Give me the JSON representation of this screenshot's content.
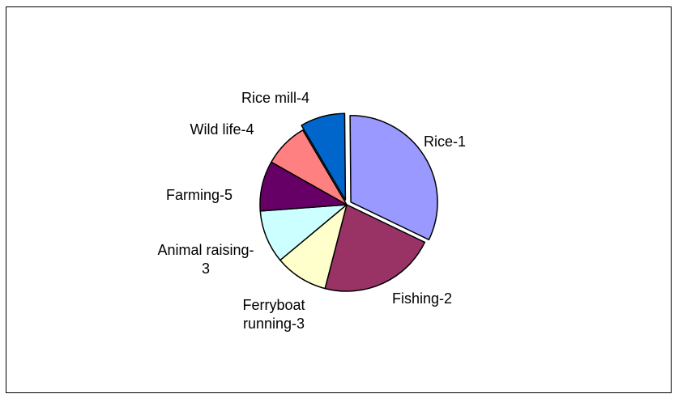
{
  "chart_data": {
    "type": "pie",
    "title": "",
    "legend": "none",
    "slices": [
      {
        "label": "Rice-1",
        "label_lines": [
          "Rice-1"
        ],
        "value": 31,
        "color": "#9999FF",
        "exploded": true
      },
      {
        "label": "Fishing-2",
        "label_lines": [
          "Fishing-2"
        ],
        "value": 21,
        "color": "#993366",
        "exploded": false
      },
      {
        "label": "Ferryboat running-3",
        "label_lines": [
          "Ferryboat",
          "running-3"
        ],
        "value": 9.5,
        "color": "#FFFFCC",
        "exploded": false
      },
      {
        "label": "Animal raising-3",
        "label_lines": [
          "Animal raising-",
          "3"
        ],
        "value": 9.5,
        "color": "#CCFFFF",
        "exploded": false
      },
      {
        "label": "Farming-5",
        "label_lines": [
          "Farming-5"
        ],
        "value": 9,
        "color": "#660066",
        "exploded": false
      },
      {
        "label": "Wild life-4",
        "label_lines": [
          "Wild life-4"
        ],
        "value": 8,
        "color": "#FF8080",
        "exploded": false
      },
      {
        "label": "Rice mill-4",
        "label_lines": [
          "Rice mill-4"
        ],
        "value": 8,
        "color": "#0066CC",
        "exploded": true
      }
    ]
  }
}
